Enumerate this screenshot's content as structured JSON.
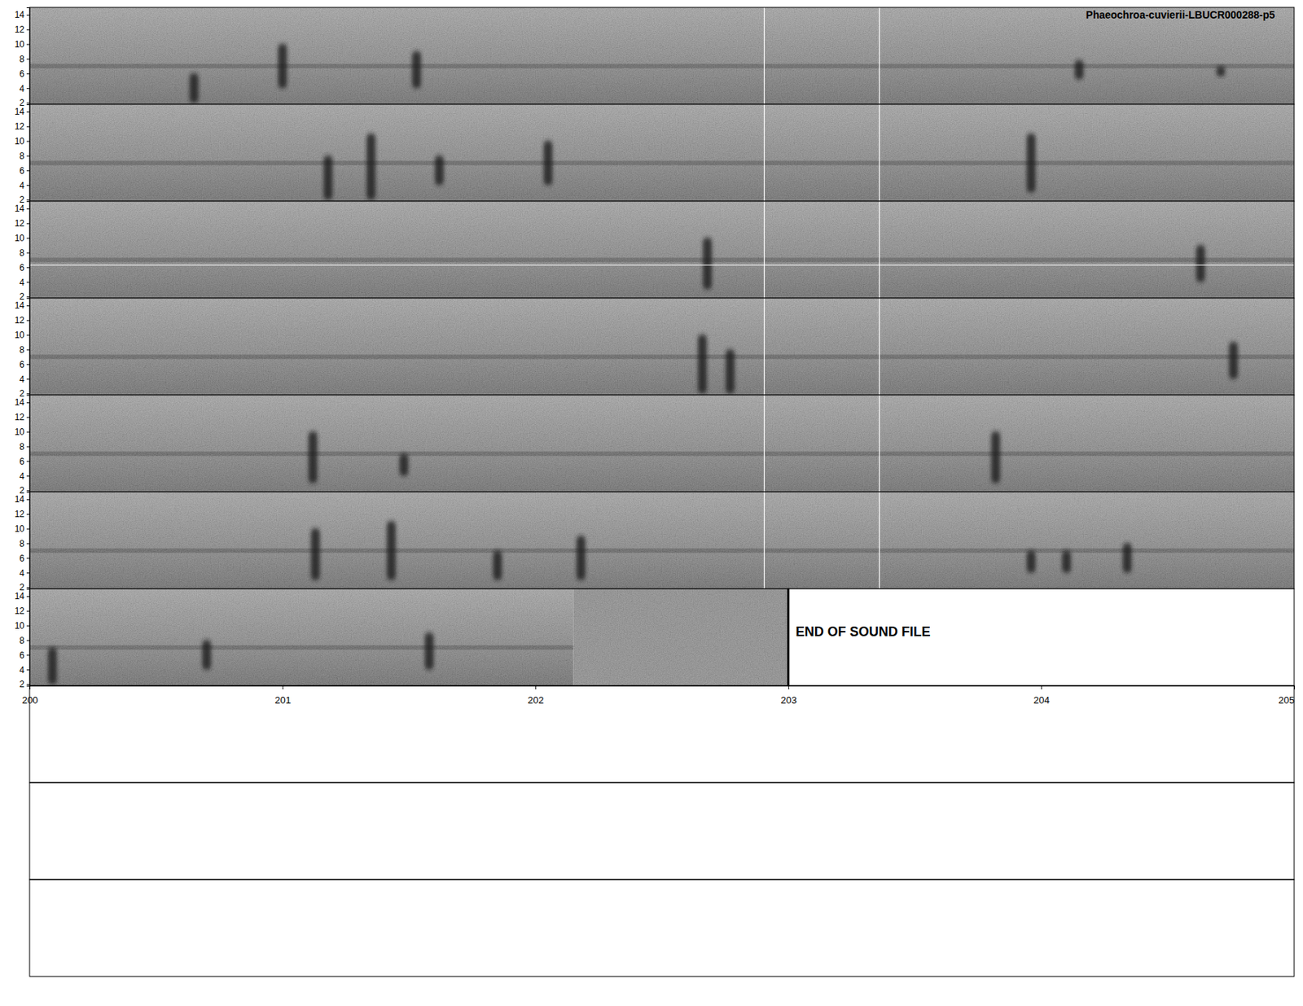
{
  "chart_data": {
    "type": "spectrogram",
    "title": "Phaeochroa-cuvierii-LBUCR000288-p5",
    "xlim": [
      200,
      205
    ],
    "xticks": [
      200,
      201,
      202,
      203,
      204,
      205
    ],
    "ylim": [
      1.8,
      15
    ],
    "yticks": [
      2,
      4,
      6,
      8,
      10,
      12,
      14
    ],
    "noise_band": [
      6.7,
      7.3
    ],
    "panels": [
      {
        "cursor_lines": [
          202.905,
          203.36
        ],
        "events": [
          {
            "x": 200.65,
            "f_lo": 2,
            "f_hi": 6
          },
          {
            "x": 201.0,
            "f_lo": 4,
            "f_hi": 10
          },
          {
            "x": 201.53,
            "f_lo": 4,
            "f_hi": 9
          },
          {
            "x": 204.15,
            "f_lo": 5.2,
            "f_hi": 7.8
          },
          {
            "x": 204.71,
            "f_lo": 5.6,
            "f_hi": 7
          }
        ]
      },
      {
        "cursor_lines": [
          202.905,
          203.36
        ],
        "events": [
          {
            "x": 201.18,
            "f_lo": 2,
            "f_hi": 8
          },
          {
            "x": 201.35,
            "f_lo": 2,
            "f_hi": 11
          },
          {
            "x": 201.62,
            "f_lo": 4,
            "f_hi": 8
          },
          {
            "x": 202.05,
            "f_lo": 4,
            "f_hi": 10
          },
          {
            "x": 203.96,
            "f_lo": 3,
            "f_hi": 11
          }
        ]
      },
      {
        "cursor_lines": [
          202.905,
          203.36
        ],
        "white_line": 6.3,
        "events": [
          {
            "x": 202.68,
            "f_lo": 3,
            "f_hi": 10
          },
          {
            "x": 204.63,
            "f_lo": 4,
            "f_hi": 9
          }
        ]
      },
      {
        "cursor_lines": [
          202.905,
          203.36
        ],
        "events": [
          {
            "x": 202.66,
            "f_lo": 2,
            "f_hi": 10
          },
          {
            "x": 202.77,
            "f_lo": 2,
            "f_hi": 8
          },
          {
            "x": 204.76,
            "f_lo": 4,
            "f_hi": 9
          }
        ]
      },
      {
        "cursor_lines": [
          202.905,
          203.36
        ],
        "events": [
          {
            "x": 201.12,
            "f_lo": 3,
            "f_hi": 10
          },
          {
            "x": 201.48,
            "f_lo": 4,
            "f_hi": 7
          },
          {
            "x": 203.82,
            "f_lo": 3,
            "f_hi": 10
          }
        ]
      },
      {
        "cursor_lines": [
          202.905,
          203.36
        ],
        "events": [
          {
            "x": 201.13,
            "f_lo": 3,
            "f_hi": 10
          },
          {
            "x": 201.43,
            "f_lo": 3,
            "f_hi": 11
          },
          {
            "x": 201.85,
            "f_lo": 3,
            "f_hi": 7
          },
          {
            "x": 202.18,
            "f_lo": 3,
            "f_hi": 9
          },
          {
            "x": 203.96,
            "f_lo": 4,
            "f_hi": 7
          },
          {
            "x": 204.1,
            "f_lo": 4,
            "f_hi": 7
          },
          {
            "x": 204.34,
            "f_lo": 4,
            "f_hi": 8
          }
        ]
      },
      {
        "data_end": 202.15,
        "file_end": 203.0,
        "end_label": "END OF SOUND FILE",
        "events": [
          {
            "x": 200.09,
            "f_lo": 2,
            "f_hi": 7
          },
          {
            "x": 200.7,
            "f_lo": 4,
            "f_hi": 8
          },
          {
            "x": 201.58,
            "f_lo": 4,
            "f_hi": 9
          }
        ]
      }
    ]
  }
}
